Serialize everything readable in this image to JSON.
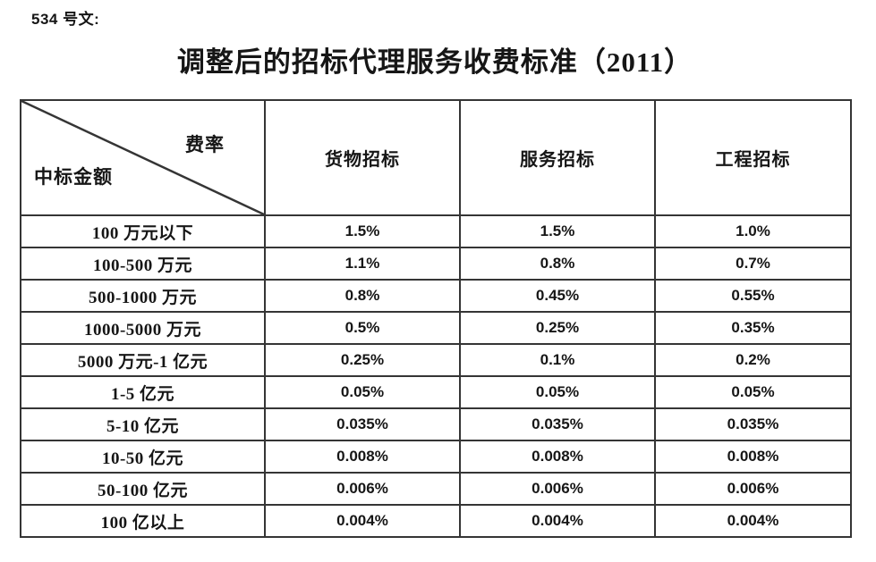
{
  "doc_number": "534 号文:",
  "title": "调整后的招标代理服务收费标准（2011）",
  "table": {
    "corner_top_right": "费率",
    "corner_bottom_left": "中标金额",
    "columns": [
      "货物招标",
      "服务招标",
      "工程招标"
    ],
    "rows": [
      {
        "label": "100 万元以下",
        "values": [
          "1.5%",
          "1.5%",
          "1.0%"
        ]
      },
      {
        "label": "100-500 万元",
        "values": [
          "1.1%",
          "0.8%",
          "0.7%"
        ]
      },
      {
        "label": "500-1000 万元",
        "values": [
          "0.8%",
          "0.45%",
          "0.55%"
        ]
      },
      {
        "label": "1000-5000 万元",
        "values": [
          "0.5%",
          "0.25%",
          "0.35%"
        ]
      },
      {
        "label": "5000 万元-1 亿元",
        "values": [
          "0.25%",
          "0.1%",
          "0.2%"
        ]
      },
      {
        "label": "1-5 亿元",
        "values": [
          "0.05%",
          "0.05%",
          "0.05%"
        ]
      },
      {
        "label": "5-10 亿元",
        "values": [
          "0.035%",
          "0.035%",
          "0.035%"
        ]
      },
      {
        "label": "10-50 亿元",
        "values": [
          "0.008%",
          "0.008%",
          "0.008%"
        ]
      },
      {
        "label": "50-100 亿元",
        "values": [
          "0.006%",
          "0.006%",
          "0.006%"
        ]
      },
      {
        "label": "100 亿以上",
        "values": [
          "0.004%",
          "0.004%",
          "0.004%"
        ]
      }
    ]
  },
  "colors": {
    "border": "#353535",
    "text": "#161616",
    "background": "#ffffff"
  }
}
